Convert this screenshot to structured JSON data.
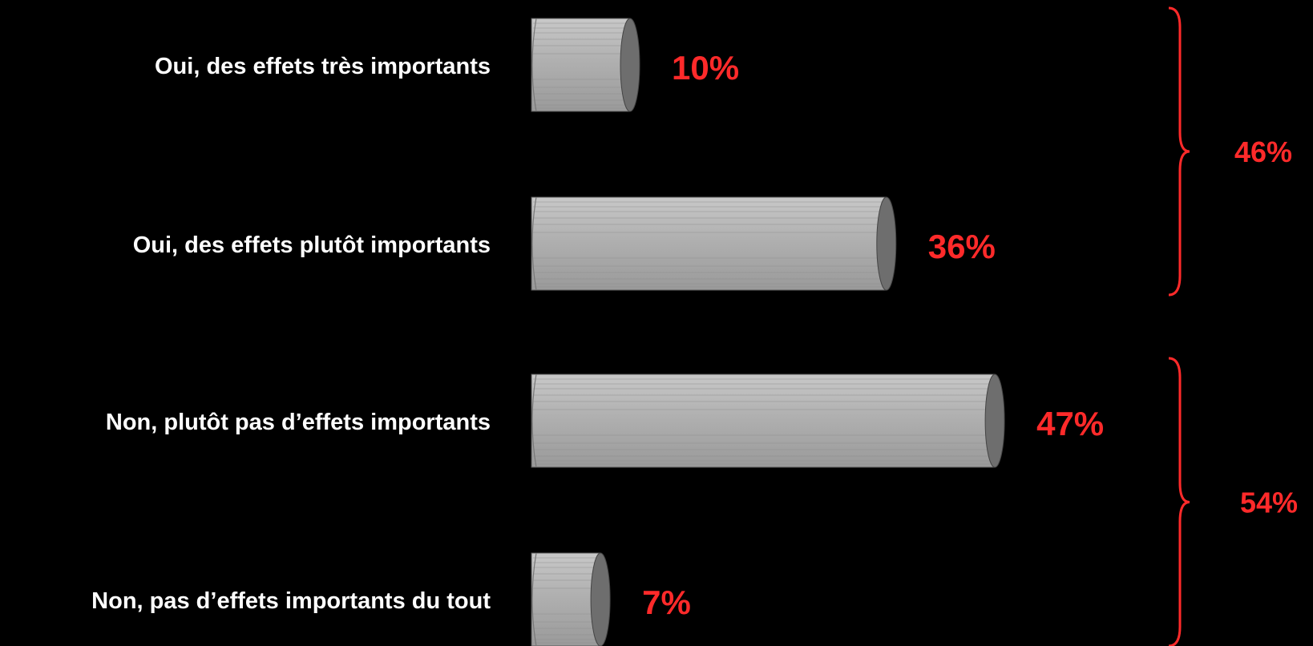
{
  "chart_data": {
    "type": "bar",
    "orientation": "horizontal",
    "categories": [
      "Oui, des effets très importants",
      "Oui, des effets plutôt importants",
      "Non, plutôt pas d’effets importants",
      "Non, pas d’effets importants du tout"
    ],
    "values": [
      10,
      36,
      47,
      7
    ],
    "value_labels": [
      "10%",
      "36%",
      "47%",
      "7%"
    ],
    "groups": [
      {
        "label": "46%",
        "value": 46,
        "members": [
          0,
          1
        ]
      },
      {
        "label": "54%",
        "value": 54,
        "members": [
          2,
          3
        ]
      }
    ],
    "grid": false,
    "legend": "none",
    "colors": {
      "background": "#000000",
      "bar_fill": "#b4b4b4",
      "bar_end": "#6e6e6e",
      "category_text": "#ffffff",
      "value_text": "#ff2a2a",
      "brace": "#ff2a2a"
    }
  }
}
